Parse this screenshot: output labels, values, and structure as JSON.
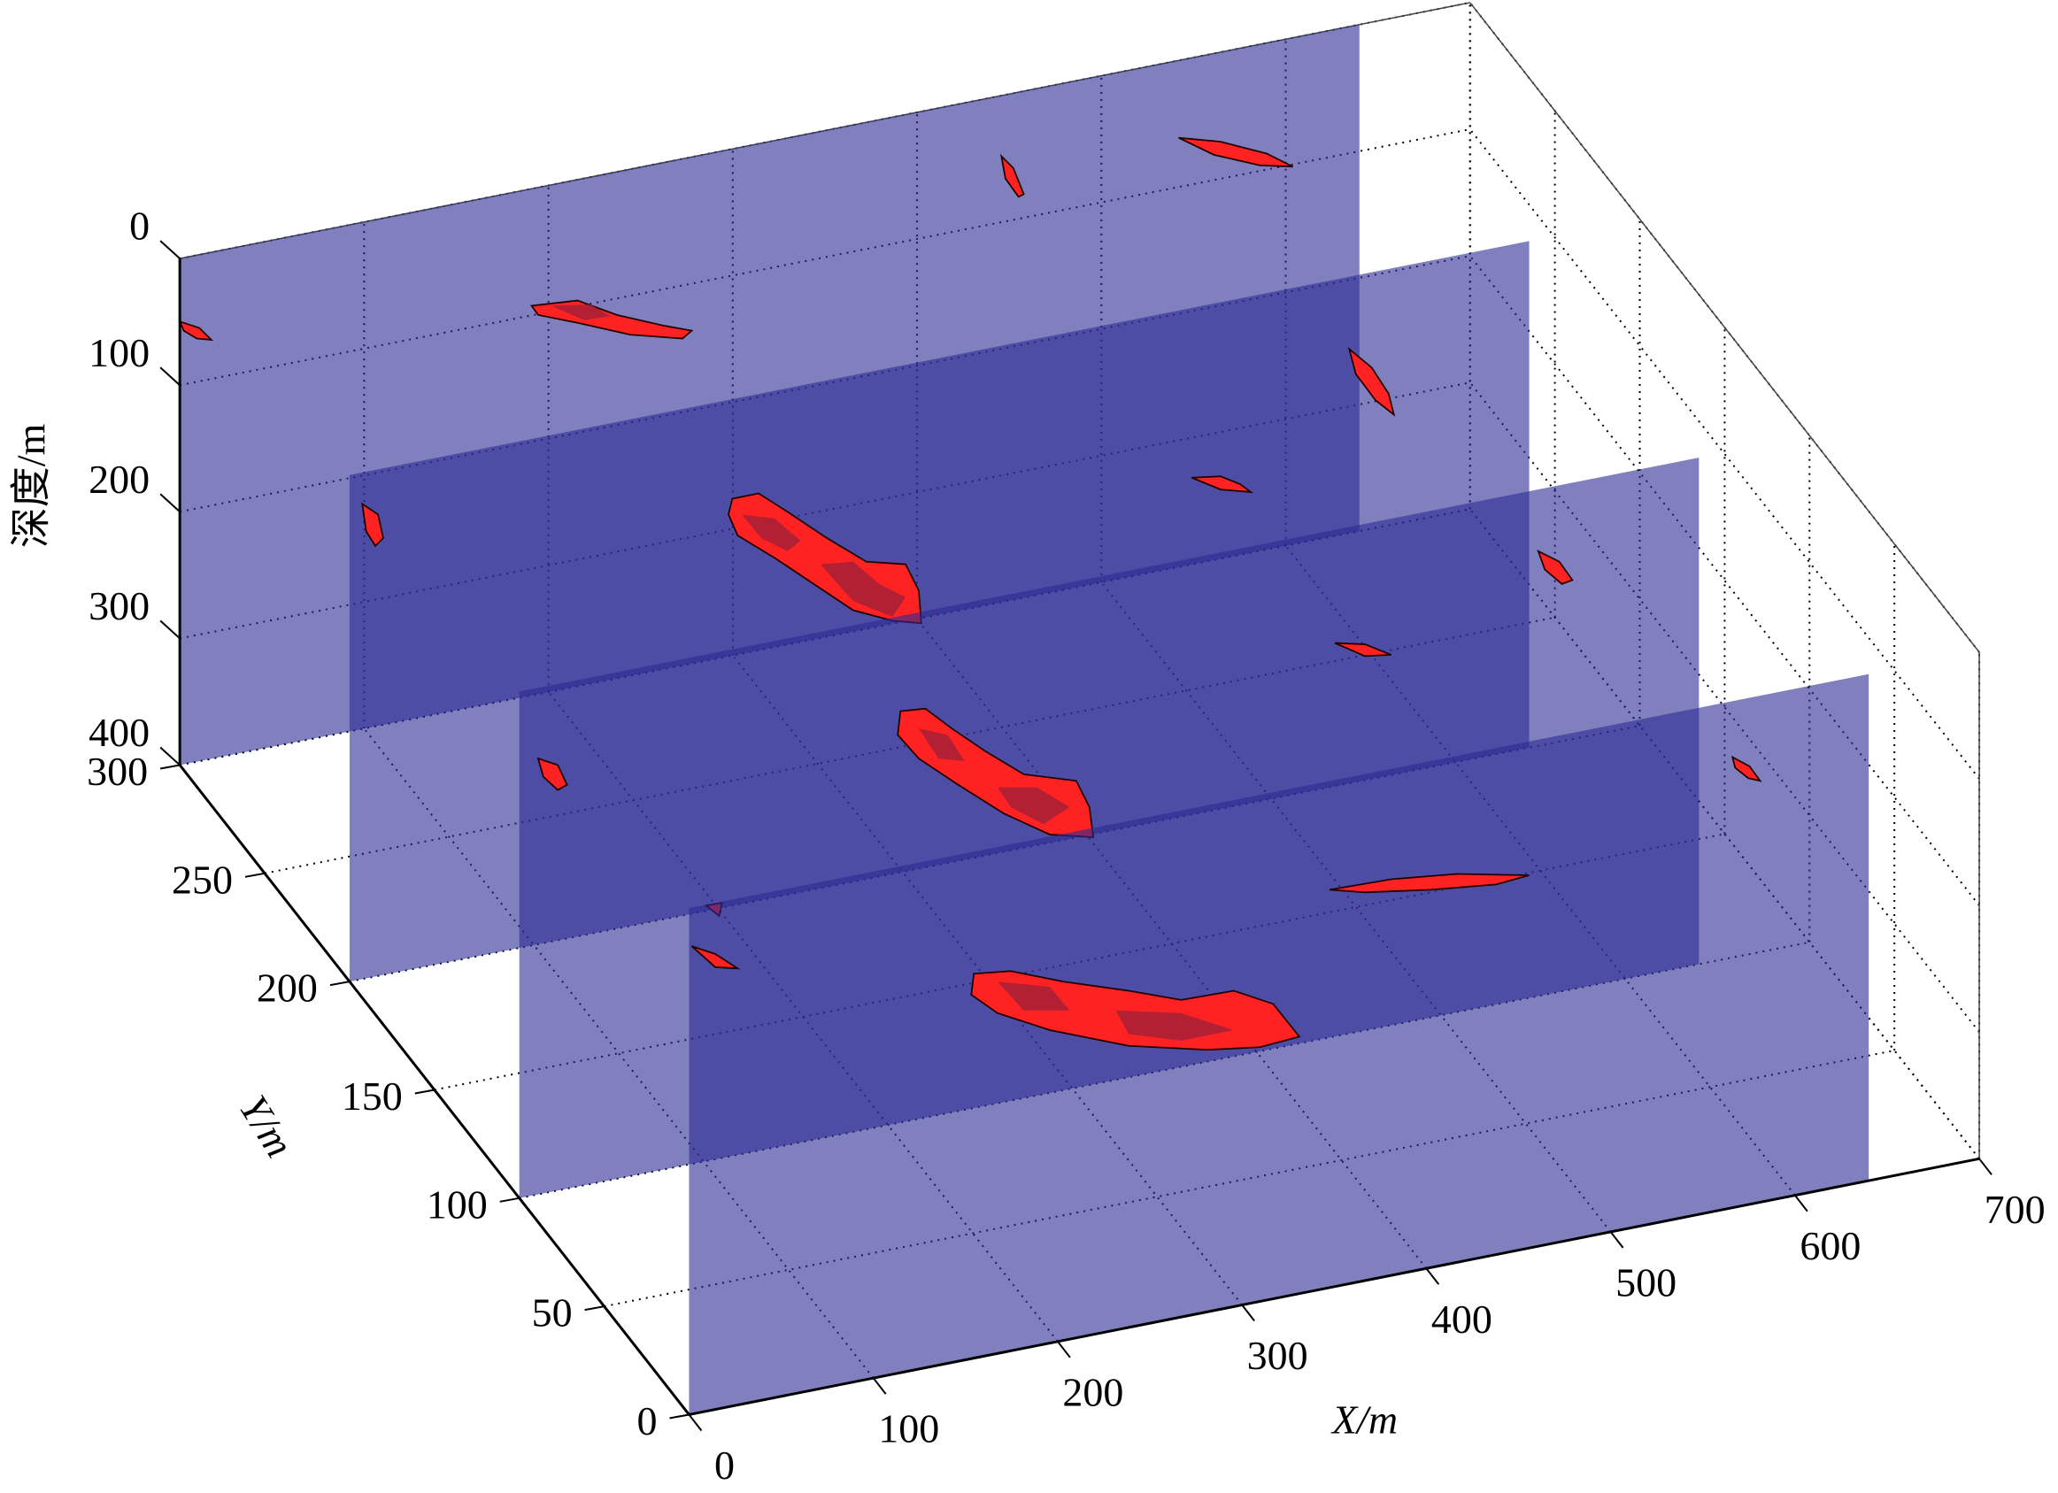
{
  "chart_data": {
    "type": "slice3d",
    "xlabel": "X/m",
    "ylabel": "Y/m",
    "zlabel": "深度/m",
    "xlim": [
      0,
      700
    ],
    "xticks": [
      0,
      100,
      200,
      300,
      400,
      500,
      600,
      700
    ],
    "ylim": [
      0,
      300
    ],
    "yticks": [
      0,
      50,
      100,
      150,
      200,
      250,
      300
    ],
    "zlim": [
      0,
      400
    ],
    "zticks": [
      0,
      100,
      200,
      300,
      400
    ],
    "zreverse": true,
    "grid": true,
    "slices": {
      "y": [
        300,
        200,
        100,
        0
      ],
      "xrange": [
        0,
        640
      ],
      "color": "#2b2b94"
    }
  }
}
